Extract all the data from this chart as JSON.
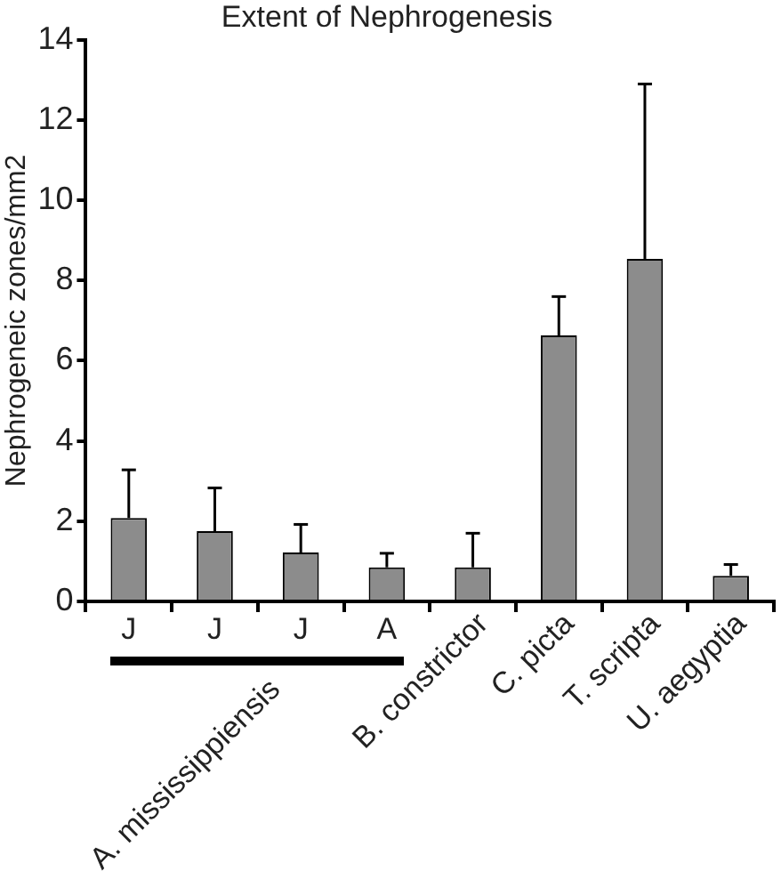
{
  "chart_data": {
    "type": "bar",
    "title": "Extent of Nephrogenesis",
    "ylabel": "Nephrogeneic zones/mm2",
    "categories": [
      "J",
      "J",
      "J",
      "A",
      "B. constrictor",
      "C. picta",
      "T. scripta",
      "U. aegyptia"
    ],
    "values": [
      2.08,
      1.75,
      1.22,
      0.85,
      0.85,
      6.63,
      8.54,
      0.64
    ],
    "errors": [
      [
        2.08,
        3.28
      ],
      [
        1.75,
        2.83
      ],
      [
        1.22,
        1.92
      ],
      [
        0.85,
        1.2
      ],
      [
        0.85,
        1.7
      ],
      [
        6.63,
        7.6
      ],
      [
        8.54,
        12.9
      ],
      [
        0.64,
        0.92
      ]
    ],
    "color": "#8c8c8c",
    "ylim": [
      0,
      14
    ],
    "yticks": [
      0,
      2,
      4,
      6,
      8,
      10,
      12,
      14
    ],
    "annotations": [
      "A. mississippiensis"
    ],
    "grid": false,
    "legend": false
  }
}
